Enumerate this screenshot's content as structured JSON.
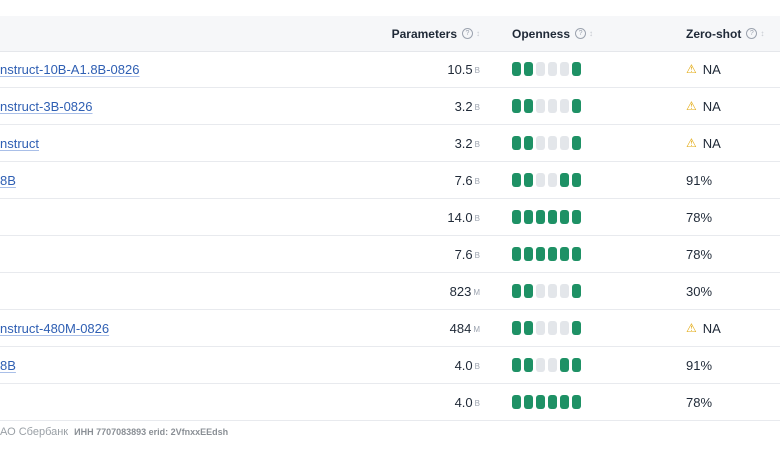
{
  "header": {
    "parameters": "Parameters",
    "openness": "Openness",
    "zero_shot": "Zero-shot",
    "help": "?",
    "sort": "↕"
  },
  "colors": {
    "bar_on": "#1e9165",
    "bar_off": "#e3e6ea",
    "link": "#2f5fb3",
    "warn": "#e2a70a"
  },
  "rows": [
    {
      "name": "nstruct-10B-A1.8B-0826",
      "value": "10.5",
      "unit": "B",
      "openness": 3,
      "openness_pattern": [
        1,
        1,
        0,
        0,
        0,
        1
      ],
      "zero_shot": "NA",
      "warn": "⚠"
    },
    {
      "name": "nstruct-3B-0826",
      "value": "3.2",
      "unit": "B",
      "openness_pattern": [
        1,
        1,
        0,
        0,
        0,
        1
      ],
      "zero_shot": "NA",
      "warn": "⚠"
    },
    {
      "name": "nstruct",
      "value": "3.2",
      "unit": "B",
      "openness_pattern": [
        1,
        1,
        0,
        0,
        0,
        1
      ],
      "zero_shot": "NA",
      "warn": "⚠"
    },
    {
      "name": "8B",
      "value": "7.6",
      "unit": "B",
      "openness_pattern": [
        1,
        1,
        0,
        0,
        1,
        1
      ],
      "zero_shot": "91%",
      "warn": ""
    },
    {
      "name": "",
      "value": "14.0",
      "unit": "B",
      "openness_pattern": [
        1,
        1,
        1,
        1,
        1,
        1
      ],
      "zero_shot": "78%",
      "warn": ""
    },
    {
      "name": "",
      "value": "7.6",
      "unit": "B",
      "openness_pattern": [
        1,
        1,
        1,
        1,
        1,
        1
      ],
      "zero_shot": "78%",
      "warn": ""
    },
    {
      "name": "",
      "value": "823",
      "unit": "M",
      "openness_pattern": [
        1,
        1,
        0,
        0,
        0,
        1
      ],
      "zero_shot": "30%",
      "warn": ""
    },
    {
      "name": "nstruct-480M-0826",
      "value": "484",
      "unit": "M",
      "openness_pattern": [
        1,
        1,
        0,
        0,
        0,
        1
      ],
      "zero_shot": "NA",
      "warn": "⚠"
    },
    {
      "name": "8B",
      "value": "4.0",
      "unit": "B",
      "openness_pattern": [
        1,
        1,
        0,
        0,
        1,
        1
      ],
      "zero_shot": "91%",
      "warn": ""
    },
    {
      "name": "",
      "value": "4.0",
      "unit": "B",
      "openness_pattern": [
        1,
        1,
        1,
        1,
        1,
        1
      ],
      "zero_shot": "78%",
      "warn": ""
    }
  ],
  "footer": {
    "text": "АО Сбербанк",
    "meta": "ИНН 7707083893 erid: 2VfnxxEEdsh"
  }
}
